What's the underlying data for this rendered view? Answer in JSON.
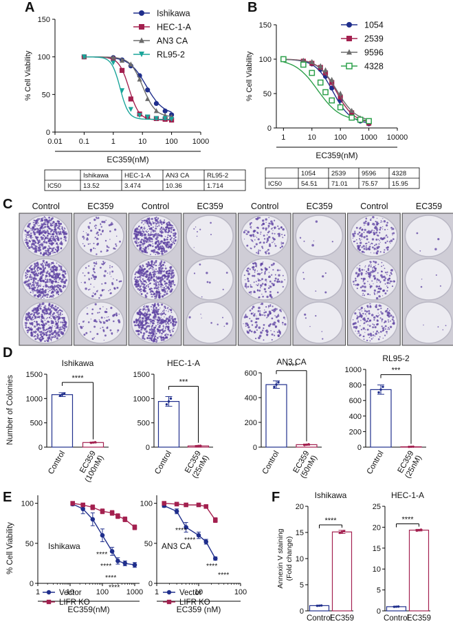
{
  "colors": {
    "navy": "#1f2e8c",
    "maroon": "#a3204f",
    "grey": "#6b6b6b",
    "teal": "#1aa59a",
    "green": "#2ca04a",
    "crystal_violet": "#5b3fa0",
    "plate_bg": "#d9d7e0"
  },
  "panels": {
    "A": {
      "letter": "A",
      "table": {
        "row_label": "IC50",
        "headers": [
          "Ishikawa",
          "HEC-1-A",
          "AN3 CA",
          "RL95-2"
        ],
        "values": [
          "13.52",
          "3.474",
          "10.36",
          "1.714"
        ]
      }
    },
    "B": {
      "letter": "B",
      "table": {
        "row_label": "IC50",
        "headers": [
          "1054",
          "2539",
          "9596",
          "4328"
        ],
        "values": [
          "54.51",
          "71.01",
          "75.57",
          "15.95"
        ]
      }
    },
    "C": {
      "letter": "C",
      "columns": [
        "Control",
        "EC359",
        "Control",
        "EC359",
        "Control",
        "EC359",
        "Control",
        "EC359"
      ]
    },
    "D": {
      "letter": "D"
    },
    "E": {
      "letter": "E"
    },
    "F": {
      "letter": "F"
    }
  },
  "chart_data": [
    {
      "id": "A",
      "type": "line",
      "xscale": "log",
      "xlabel": "EC359(nM)",
      "ylabel": "% Cell Viability",
      "xticks": [
        "0.01",
        "0.1",
        "1",
        "10",
        "100",
        "1000"
      ],
      "yticks": [
        "0",
        "50",
        "100",
        "150"
      ],
      "ylim": [
        0,
        150
      ],
      "x": [
        0.1,
        1,
        2,
        4,
        8,
        15,
        30,
        60,
        100
      ],
      "series": [
        {
          "name": "Ishikawa",
          "marker": "circle",
          "color": "navy",
          "ic50": 13.52,
          "hill": 1.5,
          "values": [
            100,
            99,
            96,
            88,
            75,
            56,
            38,
            28,
            23
          ]
        },
        {
          "name": "HEC-1-A",
          "marker": "square",
          "color": "maroon",
          "ic50": 3.474,
          "hill": 2.5,
          "values": [
            100,
            97,
            82,
            44,
            24,
            20,
            18,
            17,
            16
          ]
        },
        {
          "name": "AN3 CA",
          "marker": "triangle",
          "color": "grey",
          "ic50": 10.36,
          "hill": 2.0,
          "values": [
            100,
            99,
            95,
            90,
            70,
            44,
            28,
            22,
            20
          ]
        },
        {
          "name": "RL95-2",
          "marker": "triangle-down",
          "color": "teal",
          "ic50": 1.714,
          "hill": 3.0,
          "values": [
            100,
            92,
            55,
            30,
            22,
            20,
            18,
            18,
            17
          ]
        }
      ]
    },
    {
      "id": "B",
      "type": "line",
      "xscale": "log",
      "xlabel": "EC359(nM)",
      "ylabel": "% Cell Viability",
      "xticks": [
        "1",
        "10",
        "100",
        "1000",
        "10000"
      ],
      "yticks": [
        "0",
        "50",
        "100",
        "150"
      ],
      "ylim": [
        0,
        150
      ],
      "x": [
        1,
        5,
        10,
        20,
        30,
        50,
        100,
        250,
        500,
        1000
      ],
      "series": [
        {
          "name": "1054",
          "marker": "circle",
          "color": "navy",
          "ic50": 54.51,
          "hill": 1.4,
          "values": [
            100,
            97,
            93,
            85,
            75,
            58,
            40,
            18,
            10,
            6
          ]
        },
        {
          "name": "2539",
          "marker": "square",
          "color": "maroon",
          "ic50": 71.01,
          "hill": 1.4,
          "values": [
            100,
            97,
            94,
            88,
            80,
            66,
            45,
            22,
            12,
            7
          ]
        },
        {
          "name": "9596",
          "marker": "triangle",
          "color": "grey",
          "ic50": 75.57,
          "hill": 1.3,
          "values": [
            100,
            98,
            96,
            90,
            84,
            70,
            50,
            25,
            14,
            9
          ]
        },
        {
          "name": "4328",
          "marker": "open-square",
          "color": "green",
          "ic50": 15.95,
          "hill": 1.1,
          "values": [
            100,
            92,
            80,
            66,
            52,
            40,
            30,
            15,
            12,
            10
          ]
        }
      ]
    },
    {
      "id": "D",
      "type": "bar",
      "ylabel": "Number of Colonies",
      "subplots": [
        {
          "title": "Ishikawa",
          "ylim": [
            0,
            1500
          ],
          "yticks": [
            "0",
            "500",
            "1000",
            "1500"
          ],
          "categories": [
            "Control",
            "EC359\n(100nM)"
          ],
          "values": [
            1080,
            95
          ],
          "errors": [
            40,
            10
          ],
          "significance": "****"
        },
        {
          "title": "HEC-1-A",
          "ylim": [
            0,
            1500
          ],
          "yticks": [
            "0",
            "500",
            "1000",
            "1500"
          ],
          "categories": [
            "Control",
            "EC359\n(25nM)"
          ],
          "values": [
            940,
            25
          ],
          "errors": [
            100,
            8
          ],
          "significance": "***"
        },
        {
          "title": "AN3 CA",
          "ylim": [
            0,
            600
          ],
          "yticks": [
            "0",
            "200",
            "400",
            "600"
          ],
          "categories": [
            "Control",
            "EC359\n(50nM)"
          ],
          "values": [
            505,
            20
          ],
          "errors": [
            30,
            5
          ],
          "significance": "****"
        },
        {
          "title": "RL95-2",
          "ylim": [
            0,
            1000
          ],
          "yticks": [
            "0",
            "200",
            "400",
            "600",
            "800",
            "1000"
          ],
          "categories": [
            "Control",
            "EC359\n(25nM)"
          ],
          "values": [
            740,
            5
          ],
          "errors": [
            60,
            2
          ],
          "significance": "***"
        }
      ]
    },
    {
      "id": "E",
      "type": "line",
      "xscale": "log",
      "ylabel": "% Cell Viability",
      "subplots": [
        {
          "title": "Ishikawa",
          "xlabel": "EC359(nM)",
          "xticks": [
            "1",
            "10",
            "100",
            "1000"
          ],
          "yticks": [
            "0",
            "50",
            "100"
          ],
          "ylim": [
            0,
            110
          ],
          "x": [
            12,
            25,
            50,
            100,
            200,
            300,
            500,
            1000
          ],
          "series": [
            {
              "name": "Vector",
              "marker": "circle",
              "color": "navy",
              "values": [
                99,
                93,
                80,
                60,
                40,
                28,
                25,
                23
              ],
              "errors": [
                2,
                6,
                8,
                8,
                5,
                4,
                3,
                3
              ]
            },
            {
              "name": "LIFR KO",
              "marker": "square",
              "color": "maroon",
              "values": [
                100,
                98,
                95,
                90,
                88,
                84,
                80,
                70
              ],
              "errors": [
                2,
                2,
                3,
                3,
                3,
                3,
                3,
                3
              ]
            }
          ],
          "significance": [
            "****",
            "****",
            "****",
            "****"
          ]
        },
        {
          "title": "AN3 CA",
          "xlabel": "EC359 (nM)",
          "xticks": [
            "1",
            "10",
            "100"
          ],
          "yticks": [
            "0",
            "50",
            "100"
          ],
          "ylim": [
            0,
            110
          ],
          "x": [
            1.5,
            3,
            5,
            10,
            15,
            25
          ],
          "series": [
            {
              "name": "Vector",
              "marker": "circle",
              "color": "navy",
              "values": [
                97,
                90,
                70,
                60,
                52,
                31
              ],
              "errors": [
                2,
                3,
                6,
                4,
                3,
                2
              ]
            },
            {
              "name": "LIFR KO",
              "marker": "square",
              "color": "maroon",
              "values": [
                100,
                99,
                98,
                98,
                96,
                79
              ],
              "errors": [
                1,
                1,
                1,
                1,
                2,
                3
              ]
            }
          ],
          "significance": [
            "****",
            "****",
            "****",
            "****"
          ]
        }
      ]
    },
    {
      "id": "F",
      "type": "bar",
      "ylabel": "Annexin V staining\n(Fold change)",
      "subplots": [
        {
          "title": "Ishikawa",
          "ylim": [
            0,
            20
          ],
          "yticks": [
            "0",
            "5",
            "10",
            "15",
            "20"
          ],
          "categories": [
            "Control",
            "EC359"
          ],
          "values": [
            1,
            15.1
          ],
          "errors": [
            0.05,
            0.3
          ],
          "significance": "****"
        },
        {
          "title": "HEC-1-A",
          "ylim": [
            0,
            25
          ],
          "yticks": [
            "0",
            "5",
            "10",
            "15",
            "20",
            "25"
          ],
          "categories": [
            "Control",
            "EC359"
          ],
          "values": [
            1,
            19.3
          ],
          "errors": [
            0.05,
            0.2
          ],
          "significance": "****"
        }
      ]
    }
  ]
}
